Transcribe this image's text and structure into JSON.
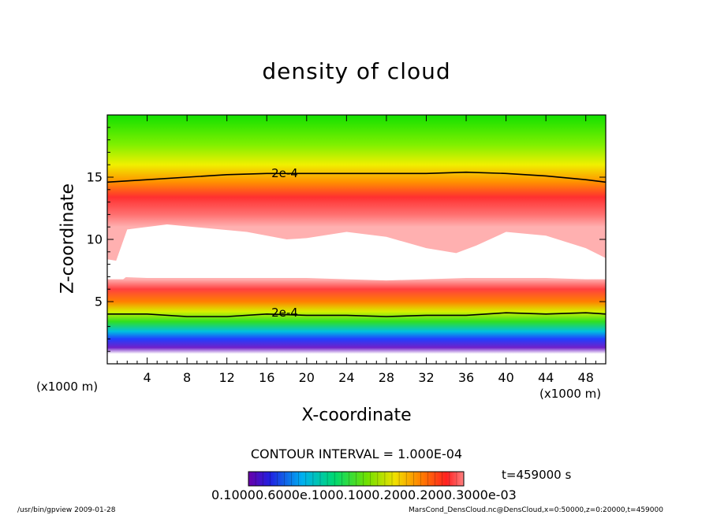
{
  "chart_data": {
    "type": "heatmap",
    "title": "density of cloud",
    "xlabel": "X-coordinate",
    "ylabel": "Z-coordinate",
    "x_unit_left": "(x1000 m)",
    "x_unit_right": "(x1000 m)",
    "xlim": [
      0,
      50
    ],
    "ylim": [
      0,
      20
    ],
    "xticks": [
      "4",
      "8",
      "12",
      "16",
      "20",
      "24",
      "28",
      "32",
      "36",
      "40",
      "44",
      "48"
    ],
    "xtick_values": [
      4,
      8,
      12,
      16,
      20,
      24,
      28,
      32,
      36,
      40,
      44,
      48
    ],
    "yticks": [
      "5",
      "10",
      "15"
    ],
    "ytick_values": [
      5,
      10,
      15
    ],
    "contour_interval": "CONTOUR INTERVAL = 1.000E-04",
    "contour_labels": [
      {
        "text": "2e-4",
        "x": 17.8,
        "z": 15.3
      },
      {
        "text": "2e-4",
        "x": 17.8,
        "z": 4.1
      }
    ],
    "colorbar_labels_text": "0.10000.6000e.1000.1000.2000.2000.3000e-03",
    "time_label": "t=459000 s",
    "upper_contour": [
      [
        0,
        14.6
      ],
      [
        4,
        14.8
      ],
      [
        8,
        15.0
      ],
      [
        12,
        15.2
      ],
      [
        16,
        15.3
      ],
      [
        20,
        15.3
      ],
      [
        24,
        15.3
      ],
      [
        28,
        15.3
      ],
      [
        32,
        15.3
      ],
      [
        36,
        15.4
      ],
      [
        40,
        15.3
      ],
      [
        44,
        15.1
      ],
      [
        48,
        14.8
      ],
      [
        50,
        14.6
      ]
    ],
    "lower_contour": [
      [
        0,
        4.0
      ],
      [
        4,
        4.0
      ],
      [
        8,
        3.8
      ],
      [
        12,
        3.8
      ],
      [
        16,
        4.0
      ],
      [
        20,
        3.9
      ],
      [
        24,
        3.9
      ],
      [
        28,
        3.8
      ],
      [
        32,
        3.9
      ],
      [
        36,
        3.9
      ],
      [
        40,
        4.1
      ],
      [
        44,
        4.0
      ],
      [
        48,
        4.1
      ],
      [
        50,
        4.0
      ]
    ],
    "clear_region_top": [
      [
        0.5,
        7.4
      ],
      [
        2,
        10.8
      ],
      [
        6,
        11.2
      ],
      [
        10,
        10.9
      ],
      [
        14,
        10.6
      ],
      [
        18,
        10.0
      ],
      [
        20,
        10.1
      ],
      [
        24,
        10.6
      ],
      [
        28,
        10.2
      ],
      [
        32,
        9.3
      ],
      [
        35,
        8.9
      ],
      [
        37,
        9.5
      ],
      [
        40,
        10.6
      ],
      [
        44,
        10.3
      ],
      [
        48,
        9.3
      ],
      [
        50,
        8.5
      ]
    ],
    "clear_region_bottom": [
      [
        0.5,
        7.0
      ],
      [
        4,
        6.9
      ],
      [
        8,
        6.9
      ],
      [
        12,
        6.9
      ],
      [
        16,
        6.9
      ],
      [
        20,
        6.9
      ],
      [
        24,
        6.8
      ],
      [
        28,
        6.7
      ],
      [
        32,
        6.8
      ],
      [
        36,
        6.9
      ],
      [
        40,
        6.9
      ],
      [
        44,
        6.9
      ],
      [
        48,
        6.8
      ],
      [
        50,
        6.8
      ]
    ],
    "left_pocket": [
      [
        0,
        8.4
      ],
      [
        1.5,
        8.2
      ],
      [
        2.4,
        7.3
      ],
      [
        1.6,
        6.8
      ],
      [
        0,
        6.8
      ]
    ],
    "colors": {
      "green": "#00e200",
      "yellow": "#f2f200",
      "orange": "#ff8a00",
      "red": "#ff2020",
      "pink": "#ff9c9c",
      "cyan": "#00d8e0",
      "blue": "#2030ff",
      "purple": "#8a20c0"
    }
  },
  "footer": {
    "left": "/usr/bin/gpview  2009-01-28",
    "right": "MarsCond_DensCloud.nc@DensCloud,x=0:50000,z=0:20000,t=459000"
  }
}
